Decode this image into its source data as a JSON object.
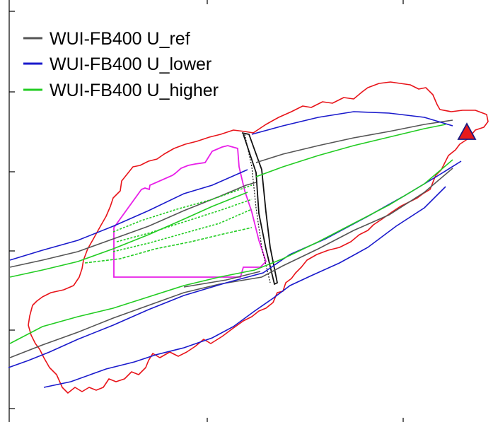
{
  "chart_data": {
    "type": "line",
    "title": "",
    "xlabel": "",
    "ylabel": "",
    "legend_position": "top-left",
    "grid": false,
    "series": [
      {
        "name": "WUI-FB400 U_ref",
        "color": "#555555"
      },
      {
        "name": "WUI-FB400 U_lower",
        "color": "#1a1acc"
      },
      {
        "name": "WUI-FB400 U_higher",
        "color": "#22cc22"
      }
    ],
    "other_marks": [
      {
        "description": "red outline",
        "color": "#e8141a"
      },
      {
        "description": "magenta outline",
        "color": "#e81fe8"
      },
      {
        "description": "black outlined band",
        "color": "#111111"
      },
      {
        "description": "red triangle marker",
        "color": "#e81a1a"
      }
    ]
  }
}
